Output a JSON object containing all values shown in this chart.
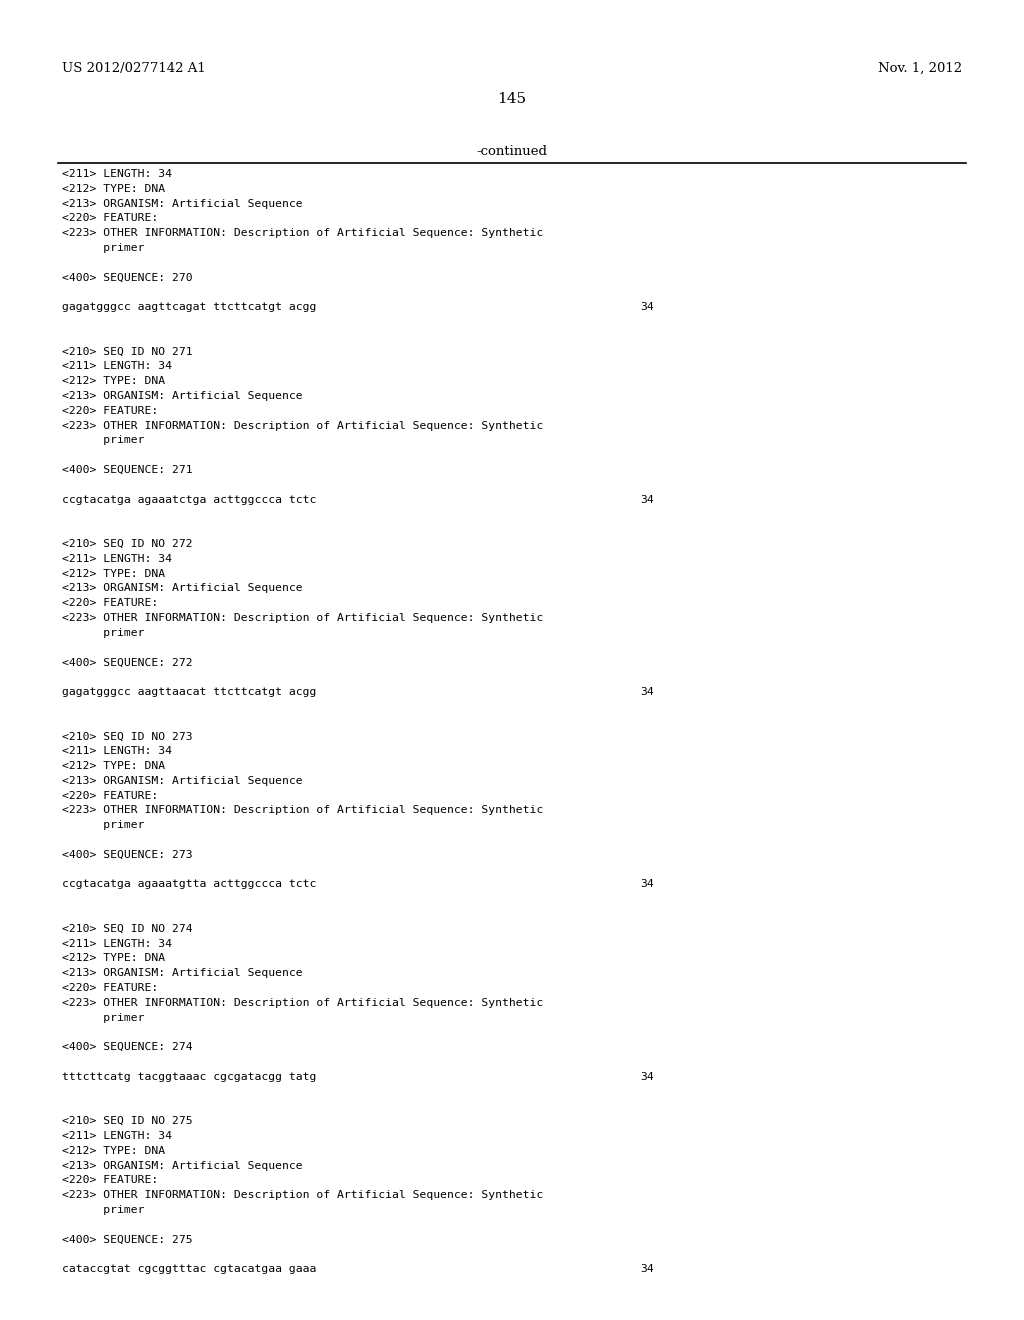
{
  "header_left": "US 2012/0277142 A1",
  "header_right": "Nov. 1, 2012",
  "page_number": "145",
  "continued_text": "-continued",
  "background_color": "#ffffff",
  "text_color": "#000000",
  "content_lines": [
    {
      "text": "<211> LENGTH: 34",
      "type": "meta"
    },
    {
      "text": "<212> TYPE: DNA",
      "type": "meta"
    },
    {
      "text": "<213> ORGANISM: Artificial Sequence",
      "type": "meta"
    },
    {
      "text": "<220> FEATURE:",
      "type": "meta"
    },
    {
      "text": "<223> OTHER INFORMATION: Description of Artificial Sequence: Synthetic",
      "type": "meta"
    },
    {
      "text": "      primer",
      "type": "meta"
    },
    {
      "text": "",
      "type": "blank"
    },
    {
      "text": "<400> SEQUENCE: 270",
      "type": "meta"
    },
    {
      "text": "",
      "type": "blank"
    },
    {
      "text": "gagatgggcc aagttcagat ttcttcatgt acgg",
      "type": "seq",
      "num": "34"
    },
    {
      "text": "",
      "type": "blank"
    },
    {
      "text": "",
      "type": "blank"
    },
    {
      "text": "<210> SEQ ID NO 271",
      "type": "meta"
    },
    {
      "text": "<211> LENGTH: 34",
      "type": "meta"
    },
    {
      "text": "<212> TYPE: DNA",
      "type": "meta"
    },
    {
      "text": "<213> ORGANISM: Artificial Sequence",
      "type": "meta"
    },
    {
      "text": "<220> FEATURE:",
      "type": "meta"
    },
    {
      "text": "<223> OTHER INFORMATION: Description of Artificial Sequence: Synthetic",
      "type": "meta"
    },
    {
      "text": "      primer",
      "type": "meta"
    },
    {
      "text": "",
      "type": "blank"
    },
    {
      "text": "<400> SEQUENCE: 271",
      "type": "meta"
    },
    {
      "text": "",
      "type": "blank"
    },
    {
      "text": "ccgtacatga agaaatctga acttggccca tctc",
      "type": "seq",
      "num": "34"
    },
    {
      "text": "",
      "type": "blank"
    },
    {
      "text": "",
      "type": "blank"
    },
    {
      "text": "<210> SEQ ID NO 272",
      "type": "meta"
    },
    {
      "text": "<211> LENGTH: 34",
      "type": "meta"
    },
    {
      "text": "<212> TYPE: DNA",
      "type": "meta"
    },
    {
      "text": "<213> ORGANISM: Artificial Sequence",
      "type": "meta"
    },
    {
      "text": "<220> FEATURE:",
      "type": "meta"
    },
    {
      "text": "<223> OTHER INFORMATION: Description of Artificial Sequence: Synthetic",
      "type": "meta"
    },
    {
      "text": "      primer",
      "type": "meta"
    },
    {
      "text": "",
      "type": "blank"
    },
    {
      "text": "<400> SEQUENCE: 272",
      "type": "meta"
    },
    {
      "text": "",
      "type": "blank"
    },
    {
      "text": "gagatgggcc aagttaacat ttcttcatgt acgg",
      "type": "seq",
      "num": "34"
    },
    {
      "text": "",
      "type": "blank"
    },
    {
      "text": "",
      "type": "blank"
    },
    {
      "text": "<210> SEQ ID NO 273",
      "type": "meta"
    },
    {
      "text": "<211> LENGTH: 34",
      "type": "meta"
    },
    {
      "text": "<212> TYPE: DNA",
      "type": "meta"
    },
    {
      "text": "<213> ORGANISM: Artificial Sequence",
      "type": "meta"
    },
    {
      "text": "<220> FEATURE:",
      "type": "meta"
    },
    {
      "text": "<223> OTHER INFORMATION: Description of Artificial Sequence: Synthetic",
      "type": "meta"
    },
    {
      "text": "      primer",
      "type": "meta"
    },
    {
      "text": "",
      "type": "blank"
    },
    {
      "text": "<400> SEQUENCE: 273",
      "type": "meta"
    },
    {
      "text": "",
      "type": "blank"
    },
    {
      "text": "ccgtacatga agaaatgtta acttggccca tctc",
      "type": "seq",
      "num": "34"
    },
    {
      "text": "",
      "type": "blank"
    },
    {
      "text": "",
      "type": "blank"
    },
    {
      "text": "<210> SEQ ID NO 274",
      "type": "meta"
    },
    {
      "text": "<211> LENGTH: 34",
      "type": "meta"
    },
    {
      "text": "<212> TYPE: DNA",
      "type": "meta"
    },
    {
      "text": "<213> ORGANISM: Artificial Sequence",
      "type": "meta"
    },
    {
      "text": "<220> FEATURE:",
      "type": "meta"
    },
    {
      "text": "<223> OTHER INFORMATION: Description of Artificial Sequence: Synthetic",
      "type": "meta"
    },
    {
      "text": "      primer",
      "type": "meta"
    },
    {
      "text": "",
      "type": "blank"
    },
    {
      "text": "<400> SEQUENCE: 274",
      "type": "meta"
    },
    {
      "text": "",
      "type": "blank"
    },
    {
      "text": "tttcttcatg tacggtaaac cgcgatacgg tatg",
      "type": "seq",
      "num": "34"
    },
    {
      "text": "",
      "type": "blank"
    },
    {
      "text": "",
      "type": "blank"
    },
    {
      "text": "<210> SEQ ID NO 275",
      "type": "meta"
    },
    {
      "text": "<211> LENGTH: 34",
      "type": "meta"
    },
    {
      "text": "<212> TYPE: DNA",
      "type": "meta"
    },
    {
      "text": "<213> ORGANISM: Artificial Sequence",
      "type": "meta"
    },
    {
      "text": "<220> FEATURE:",
      "type": "meta"
    },
    {
      "text": "<223> OTHER INFORMATION: Description of Artificial Sequence: Synthetic",
      "type": "meta"
    },
    {
      "text": "      primer",
      "type": "meta"
    },
    {
      "text": "",
      "type": "blank"
    },
    {
      "text": "<400> SEQUENCE: 275",
      "type": "meta"
    },
    {
      "text": "",
      "type": "blank"
    },
    {
      "text": "cataccgtat cgcggtttac cgtacatgaa gaaa",
      "type": "seq",
      "num": "34"
    }
  ]
}
